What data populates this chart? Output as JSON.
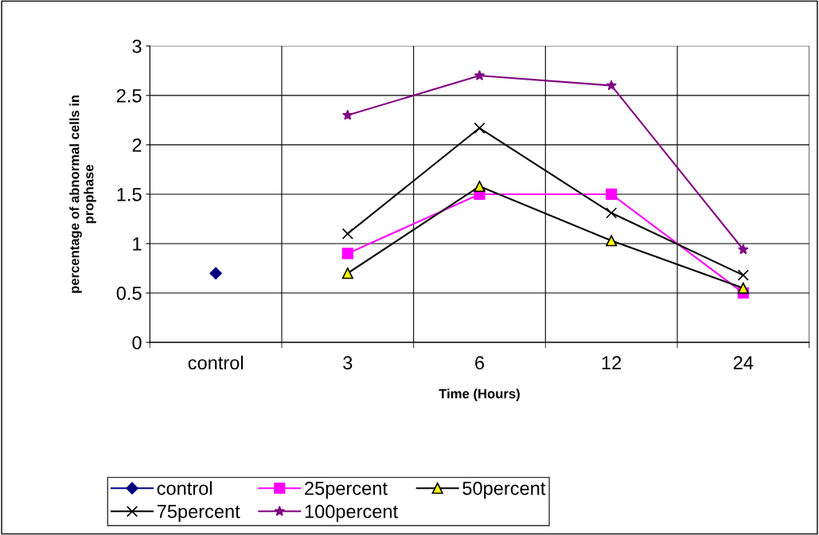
{
  "chart_data": {
    "type": "line",
    "xlabel": "Time (Hours)",
    "ylabel": "percentage of abnormal cells in\nprophase",
    "categories": [
      "control",
      "3",
      "6",
      "12",
      "24"
    ],
    "ylim": [
      0,
      3
    ],
    "yticks": [
      0,
      0.5,
      1,
      1.5,
      2,
      2.5,
      3
    ],
    "grid": true,
    "legend": "bottom",
    "series": [
      {
        "name": "control",
        "color": "#000080",
        "marker": "diamond",
        "values": [
          0.7,
          null,
          null,
          null,
          null
        ]
      },
      {
        "name": "25percent",
        "color": "#ff00ff",
        "marker": "square",
        "values": [
          null,
          0.9,
          1.5,
          1.5,
          0.5
        ]
      },
      {
        "name": "50percent",
        "color": "#000000",
        "colors": [
          null,
          "#ffff00",
          "#ffff00",
          "#ffff00",
          "#ffff00"
        ],
        "marker": "triangle",
        "values": [
          null,
          0.7,
          1.58,
          1.03,
          0.55
        ]
      },
      {
        "name": "75percent",
        "color": "#000000",
        "marker": "cross",
        "values": [
          null,
          1.1,
          2.17,
          1.31,
          0.68
        ]
      },
      {
        "name": "100percent",
        "color": "#800080",
        "marker": "star",
        "values": [
          null,
          2.3,
          2.7,
          2.6,
          0.94
        ]
      }
    ]
  }
}
